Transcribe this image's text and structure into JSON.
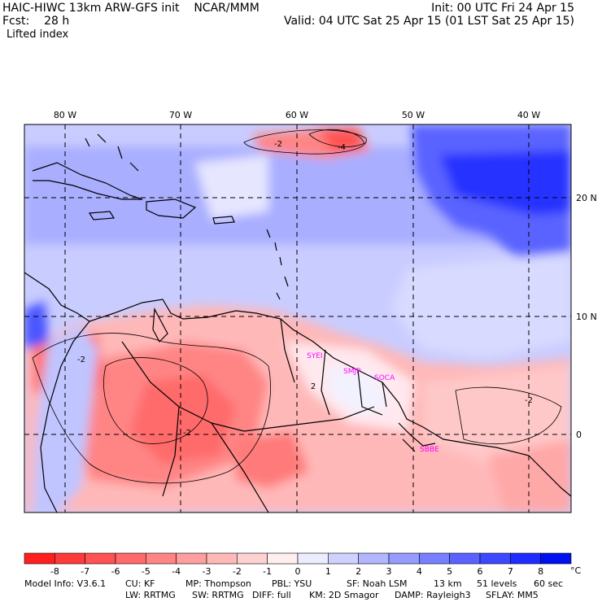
{
  "header": {
    "model": "HAIC-HIWC 13km ARW-GFS init",
    "org": "NCAR/MMM",
    "init": "Init: 00 UTC Fri 24 Apr 15",
    "fcst_label": "Fcst:",
    "fcst_value": "28 h",
    "valid": "Valid: 04 UTC Sat 25 Apr 15 (01 LST Sat 25 Apr 15)",
    "field": "Lifted index"
  },
  "map": {
    "lon_labels": [
      {
        "lon": -80,
        "text": "80 W"
      },
      {
        "lon": -70,
        "text": "70 W"
      },
      {
        "lon": -60,
        "text": "60 W"
      },
      {
        "lon": -50,
        "text": "50 W"
      },
      {
        "lon": -40,
        "text": "40 W"
      }
    ],
    "lat_labels": [
      {
        "lat": 20,
        "text": "20 N"
      },
      {
        "lat": 10,
        "text": "10 N"
      },
      {
        "lat": 0,
        "text": "0"
      }
    ],
    "stations": [
      {
        "name": "SYEI",
        "lon": -58.8,
        "lat": 7.3
      },
      {
        "name": "SMJP",
        "lon": -55.2,
        "lat": 5.2
      },
      {
        "name": "SOCA",
        "lon": -52.4,
        "lat": 4.8
      },
      {
        "name": "SBBE",
        "lon": -48.5,
        "lat": -1.4
      }
    ],
    "contour_labels": [
      "-2",
      "-4",
      "-2",
      "2",
      "-2",
      "-2"
    ],
    "colors": {
      "negative_max": "#ff0000",
      "positive_max": "#0000ff",
      "coast": "#000000",
      "station": "#ff00ff"
    }
  },
  "colorbar": {
    "ticks": [
      "-8",
      "-7",
      "-6",
      "-5",
      "-4",
      "-3",
      "-2",
      "-1",
      "0",
      "1",
      "2",
      "3",
      "4",
      "5",
      "6",
      "7",
      "8"
    ],
    "unit": "°C",
    "colors": [
      "#ff1f1f",
      "#ff3a3a",
      "#ff5252",
      "#ff6a6a",
      "#ff8585",
      "#ff9e9e",
      "#ffb8b8",
      "#ffd2d2",
      "#ffeeee",
      "#ececff",
      "#cfd2ff",
      "#b2b6ff",
      "#959bff",
      "#777fff",
      "#5a63ff",
      "#3c47ff",
      "#1f2bff",
      "#0010f0"
    ]
  },
  "model_info": {
    "row1": [
      {
        "k": "Model Info:",
        "v": "V3.6.1"
      },
      {
        "k": "CU:",
        "v": "KF"
      },
      {
        "k": "MP:",
        "v": "Thompson"
      },
      {
        "k": "PBL:",
        "v": "YSU"
      },
      {
        "k": "SF:",
        "v": "Noah LSM"
      },
      {
        "k": "",
        "v": "13 km"
      },
      {
        "k": "",
        "v": "51 levels"
      },
      {
        "k": "",
        "v": "60 sec"
      }
    ],
    "row2": [
      {
        "k": "LW:",
        "v": "RRTMG"
      },
      {
        "k": "SW:",
        "v": "RRTMG"
      },
      {
        "k": "DIFF:",
        "v": "full"
      },
      {
        "k": "KM:",
        "v": "2D Smagor"
      },
      {
        "k": "DAMP:",
        "v": "Rayleigh3"
      },
      {
        "k": "SFLAY:",
        "v": "MM5"
      }
    ]
  }
}
